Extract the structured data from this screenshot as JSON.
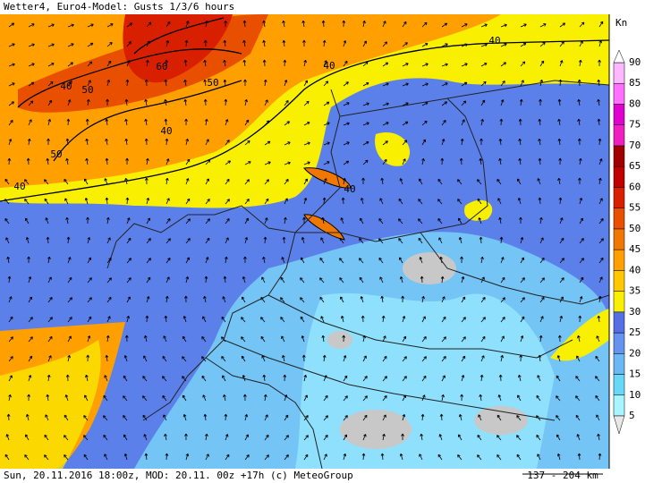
{
  "header": {
    "title": "Wetter4, Euro4-Model: Gusts 1/3/6 hours"
  },
  "footer": {
    "text": "Sun, 20.11.2016 18:00z, MOD: 20.11. 00z +17h (c) MeteoGroup",
    "scale": "137 - 204 km"
  },
  "legend": {
    "unit": "Kn",
    "levels": [
      {
        "value": 5,
        "color": "#a8f4ff"
      },
      {
        "value": 10,
        "color": "#68d8f8"
      },
      {
        "value": 15,
        "color": "#6cb8f4"
      },
      {
        "value": 20,
        "color": "#6494f0"
      },
      {
        "value": 25,
        "color": "#5470e4"
      },
      {
        "value": 30,
        "color": "#f8f000"
      },
      {
        "value": 35,
        "color": "#ffc800"
      },
      {
        "value": 40,
        "color": "#ffa000"
      },
      {
        "value": 45,
        "color": "#f07800"
      },
      {
        "value": 50,
        "color": "#e85000"
      },
      {
        "value": 55,
        "color": "#d82000"
      },
      {
        "value": 60,
        "color": "#c00000"
      },
      {
        "value": 65,
        "color": "#a00000"
      },
      {
        "value": 70,
        "color": "#f020c0"
      },
      {
        "value": 75,
        "color": "#e000d0"
      },
      {
        "value": 80,
        "color": "#ff70ff"
      },
      {
        "value": 85,
        "color": "#ffb8ff"
      },
      {
        "value": 90,
        "color": "#ffffff"
      }
    ]
  },
  "map": {
    "contour_labels": [
      40,
      40,
      40,
      40,
      40,
      40,
      50,
      50,
      50,
      60
    ]
  }
}
